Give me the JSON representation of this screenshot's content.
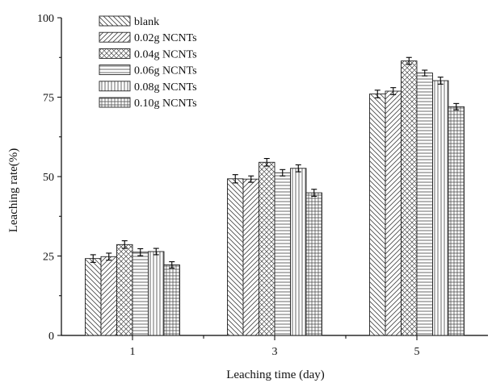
{
  "chart_data": {
    "type": "bar",
    "xlabel": "Leaching time (day)",
    "ylabel": "Leaching rate(%)",
    "categories": [
      "1",
      "3",
      "5"
    ],
    "ylim": [
      0,
      100
    ],
    "yticks": [
      0,
      25,
      50,
      75,
      100
    ],
    "grid": false,
    "legend_position": "top-left",
    "error_bars": true,
    "series": [
      {
        "name": "blank",
        "pattern": "diag-down",
        "values": [
          24.2,
          49.3,
          76.0
        ],
        "errors": [
          1.2,
          1.3,
          1.2
        ]
      },
      {
        "name": "0.02g  NCNTs",
        "pattern": "diag-up",
        "values": [
          24.8,
          49.2,
          76.9
        ],
        "errors": [
          1.1,
          1.0,
          1.1
        ]
      },
      {
        "name": "0.04g  NCNTs",
        "pattern": "crosshatch",
        "values": [
          28.6,
          54.5,
          86.4
        ],
        "errors": [
          1.2,
          1.2,
          1.1
        ]
      },
      {
        "name": "0.06g  NCNTs",
        "pattern": "horizontal",
        "values": [
          26.2,
          51.2,
          82.6
        ],
        "errors": [
          1.1,
          1.0,
          0.9
        ]
      },
      {
        "name": "0.08g  NCNTs",
        "pattern": "vertical",
        "values": [
          26.4,
          52.6,
          80.2
        ],
        "errors": [
          1.0,
          1.1,
          1.1
        ]
      },
      {
        "name": "0.10g  NCNTs",
        "pattern": "grid",
        "values": [
          22.2,
          44.9,
          72.0
        ],
        "errors": [
          1.0,
          1.1,
          1.0
        ]
      }
    ]
  }
}
